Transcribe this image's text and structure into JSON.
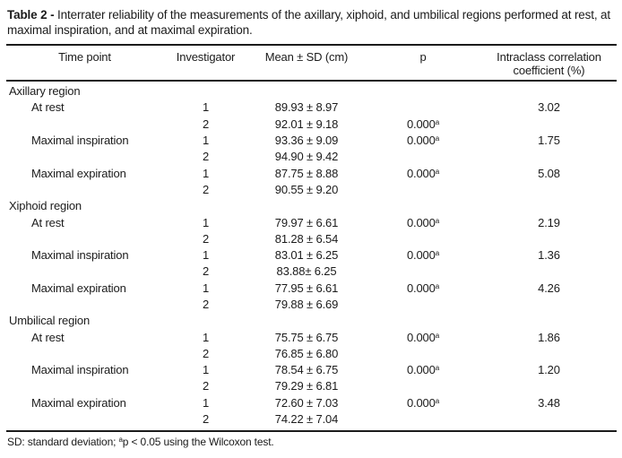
{
  "caption": {
    "label": "Table 2 -",
    "text": " Interrater reliability of the measurements of the axillary, xiphoid, and umbilical regions performed at rest, at maximal inspiration, and at maximal expiration."
  },
  "table": {
    "header": {
      "time_point": "Time point",
      "investigator": "Investigator",
      "mean_sd": "Mean ± SD (cm)",
      "p": "p",
      "icc_line1": "Intraclass correlation",
      "icc_line2": "coefficient (%)"
    },
    "rows": [
      {
        "type": "section",
        "time_point": "Axillary region"
      },
      {
        "type": "data",
        "time_point": "At rest",
        "investigator": "1",
        "mean": "89.93 ± 8.97",
        "p": "",
        "p_sup": "",
        "icc": "3.02"
      },
      {
        "type": "data",
        "time_point": "",
        "investigator": "2",
        "mean": "92.01 ± 9.18",
        "p": "0.000",
        "p_sup": "a",
        "icc": ""
      },
      {
        "type": "data",
        "time_point": "Maximal inspiration",
        "investigator": "1",
        "mean": "93.36 ± 9.09",
        "p": "0.000",
        "p_sup": "a",
        "icc": "1.75"
      },
      {
        "type": "data",
        "time_point": "",
        "investigator": "2",
        "mean": "94.90 ± 9.42",
        "p": "",
        "p_sup": "",
        "icc": ""
      },
      {
        "type": "data",
        "time_point": "Maximal expiration",
        "investigator": "1",
        "mean": "87.75 ± 8.88",
        "p": "0.000",
        "p_sup": "a",
        "icc": "5.08"
      },
      {
        "type": "data",
        "time_point": "",
        "investigator": "2",
        "mean": "90.55 ± 9.20",
        "p": "",
        "p_sup": "",
        "icc": ""
      },
      {
        "type": "section",
        "time_point": "Xiphoid region"
      },
      {
        "type": "data",
        "time_point": "At rest",
        "investigator": "1",
        "mean": "79.97 ± 6.61",
        "p": "0.000",
        "p_sup": "a",
        "icc": "2.19"
      },
      {
        "type": "data",
        "time_point": "",
        "investigator": "2",
        "mean": "81.28 ± 6.54",
        "p": "",
        "p_sup": "",
        "icc": ""
      },
      {
        "type": "data",
        "time_point": "Maximal inspiration",
        "investigator": "1",
        "mean": "83.01 ± 6.25",
        "p": "0.000",
        "p_sup": "a",
        "icc": "1.36"
      },
      {
        "type": "data",
        "time_point": "",
        "investigator": "2",
        "mean": "83.88± 6.25",
        "p": "",
        "p_sup": "",
        "icc": ""
      },
      {
        "type": "data",
        "time_point": "Maximal expiration",
        "investigator": "1",
        "mean": "77.95 ± 6.61",
        "p": "0.000",
        "p_sup": "a",
        "icc": "4.26"
      },
      {
        "type": "data",
        "time_point": "",
        "investigator": "2",
        "mean": "79.88 ± 6.69",
        "p": "",
        "p_sup": "",
        "icc": ""
      },
      {
        "type": "section",
        "time_point": "Umbilical region"
      },
      {
        "type": "data",
        "time_point": "At rest",
        "investigator": "1",
        "mean": "75.75 ± 6.75",
        "p": "0.000",
        "p_sup": "a",
        "icc": "1.86"
      },
      {
        "type": "data",
        "time_point": "",
        "investigator": "2",
        "mean": "76.85 ± 6.80",
        "p": "",
        "p_sup": "",
        "icc": ""
      },
      {
        "type": "data",
        "time_point": "Maximal inspiration",
        "investigator": "1",
        "mean": "78.54 ± 6.75",
        "p": "0.000",
        "p_sup": "a",
        "icc": "1.20"
      },
      {
        "type": "data",
        "time_point": "",
        "investigator": "2",
        "mean": "79.29 ± 6.81",
        "p": "",
        "p_sup": "",
        "icc": ""
      },
      {
        "type": "data",
        "time_point": "Maximal expiration",
        "investigator": "1",
        "mean": "72.60 ± 7.03",
        "p": "0.000",
        "p_sup": "a",
        "icc": "3.48"
      },
      {
        "type": "data",
        "time_point": "",
        "investigator": "2",
        "mean": "74.22 ± 7.04",
        "p": "",
        "p_sup": "",
        "icc": ""
      }
    ]
  },
  "footnote": {
    "prefix": "SD: standard deviation; ",
    "marker": "a",
    "text": "p < 0.05 using the Wilcoxon test."
  }
}
